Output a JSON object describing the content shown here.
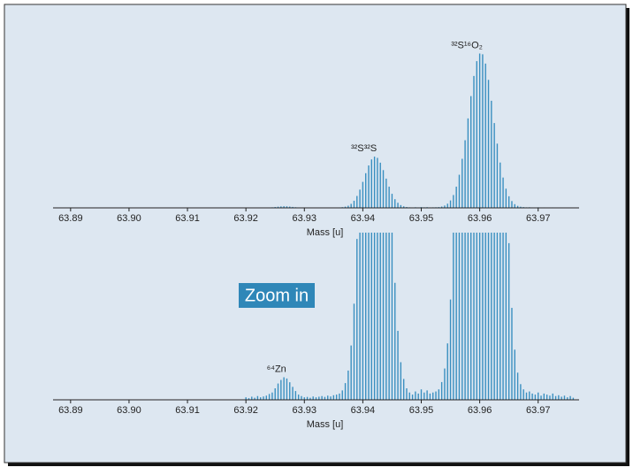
{
  "chart_data": {
    "type": "bar",
    "x": [
      63.92,
      63.9205,
      63.921,
      63.9215,
      63.922,
      63.9225,
      63.923,
      63.9235,
      63.924,
      63.9245,
      63.925,
      63.9255,
      63.926,
      63.9265,
      63.927,
      63.9275,
      63.928,
      63.9285,
      63.929,
      63.9295,
      63.93,
      63.9305,
      63.931,
      63.9315,
      63.932,
      63.9325,
      63.933,
      63.9335,
      63.934,
      63.9345,
      63.935,
      63.9355,
      63.936,
      63.9365,
      63.937,
      63.9375,
      63.938,
      63.9385,
      63.939,
      63.9395,
      63.94,
      63.9405,
      63.941,
      63.9415,
      63.942,
      63.9425,
      63.943,
      63.9435,
      63.944,
      63.9445,
      63.945,
      63.9455,
      63.946,
      63.9465,
      63.947,
      63.9475,
      63.948,
      63.9485,
      63.949,
      63.9495,
      63.95,
      63.9505,
      63.951,
      63.9515,
      63.952,
      63.9525,
      63.953,
      63.9535,
      63.954,
      63.9545,
      63.955,
      63.9555,
      63.956,
      63.9565,
      63.957,
      63.9575,
      63.958,
      63.9585,
      63.959,
      63.9595,
      63.96,
      63.9605,
      63.961,
      63.9615,
      63.962,
      63.9625,
      63.963,
      63.9635,
      63.964,
      63.9645,
      63.965,
      63.9655,
      63.966,
      63.9665,
      63.967,
      63.9675,
      63.968,
      63.9685,
      63.969,
      63.9695,
      63.97,
      63.9705,
      63.971,
      63.9715,
      63.972,
      63.9725,
      63.973,
      63.9735,
      63.974,
      63.9745,
      63.975,
      63.9755,
      63.976
    ],
    "values": [
      0.12,
      0.08,
      0.15,
      0.1,
      0.18,
      0.12,
      0.16,
      0.2,
      0.28,
      0.35,
      0.55,
      0.78,
      0.95,
      1.08,
      1.02,
      0.84,
      0.62,
      0.42,
      0.25,
      0.18,
      0.12,
      0.14,
      0.1,
      0.16,
      0.12,
      0.15,
      0.18,
      0.14,
      0.2,
      0.16,
      0.22,
      0.25,
      0.3,
      0.45,
      0.8,
      1.4,
      2.6,
      4.6,
      7.7,
      11.8,
      16.8,
      22.4,
      27.4,
      31.3,
      33.1,
      32.3,
      29.2,
      24.4,
      18.9,
      13.7,
      9.1,
      5.6,
      3.3,
      1.8,
      1.0,
      0.55,
      0.35,
      0.25,
      0.4,
      0.3,
      0.5,
      0.35,
      0.45,
      0.3,
      0.35,
      0.4,
      0.5,
      0.85,
      1.5,
      2.7,
      4.8,
      8.3,
      13.7,
      21.4,
      31.7,
      43.7,
      57.8,
      72.2,
      85.2,
      94.8,
      99.7,
      99.2,
      93.2,
      82.7,
      69.2,
      54.8,
      41.5,
      29.3,
      19.6,
      12.4,
      7.5,
      4.4,
      2.4,
      1.3,
      0.75,
      0.5,
      0.35,
      0.4,
      0.3,
      0.25,
      0.35,
      0.2,
      0.3,
      0.25,
      0.2,
      0.3,
      0.18,
      0.22,
      0.15,
      0.2,
      0.12,
      0.18,
      0.1
    ],
    "color": "#3a8fc0",
    "xlim": [
      63.887,
      63.977
    ],
    "xticks": [
      63.89,
      {
        "value": 63.9,
        "label": "63.90"
      },
      63.91,
      63.92,
      63.93,
      63.94,
      63.95,
      63.96,
      63.97
    ],
    "xlabel": "Mass [u]",
    "panels": [
      {
        "ylim": [
          0,
          100
        ],
        "annotations": [
          {
            "text": "³²S³²S",
            "x": 63.9421
          },
          {
            "text": "³²S¹⁶O₂",
            "x": 63.9602
          }
        ]
      },
      {
        "ylim": [
          0,
          8
        ],
        "label": "Zoom in",
        "annotations": [
          {
            "text": "⁶⁴Zn",
            "x": 63.9266
          }
        ]
      }
    ]
  }
}
